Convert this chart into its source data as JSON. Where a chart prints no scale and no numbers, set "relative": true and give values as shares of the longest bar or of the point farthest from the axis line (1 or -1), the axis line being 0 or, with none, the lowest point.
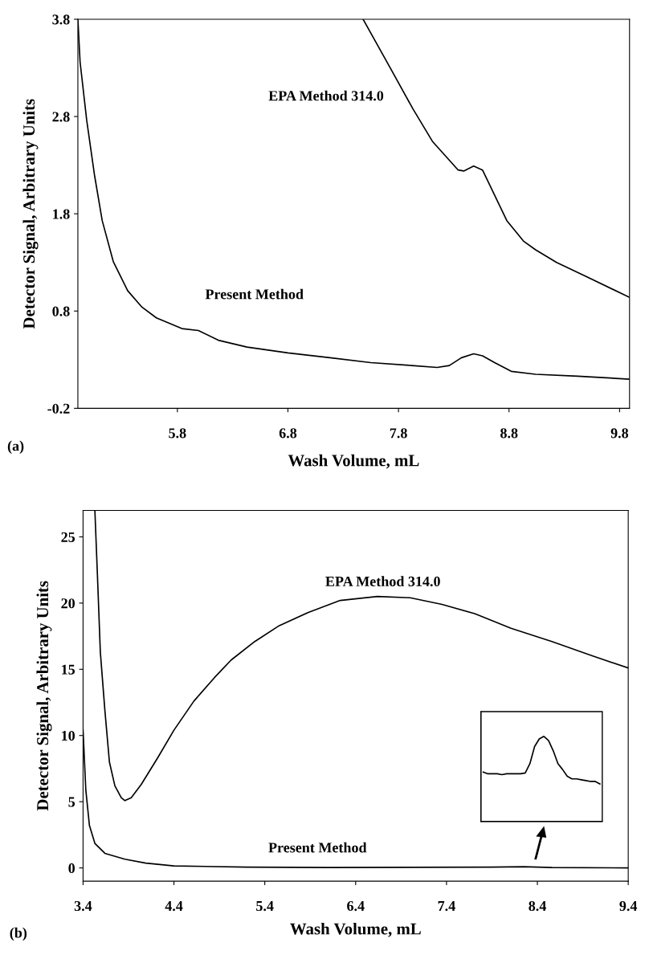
{
  "chart_data": [
    {
      "type": "line",
      "xlabel": "Wash Volume, mL",
      "ylabel": "Detector Signal, Arbitrary Units",
      "annotations": [
        "(a)"
      ],
      "xlim": [
        4.9,
        9.89
      ],
      "ylim": [
        -0.2,
        3.8
      ],
      "xticks": [
        5.8,
        6.8,
        7.8,
        8.8,
        9.8
      ],
      "yticks": [
        -0.2,
        0.8,
        1.8,
        2.8,
        3.8
      ],
      "grid": false,
      "legend": false,
      "marker": "none",
      "line_style": "solid",
      "series": [
        {
          "name": "EPA Method 314.0",
          "color": "#000000",
          "x": [
            7.48,
            7.74,
            7.93,
            8.11,
            8.34,
            8.39,
            8.48,
            8.56,
            8.67,
            8.78,
            8.93,
            9.04,
            9.23,
            9.49,
            9.89
          ],
          "values": [
            3.8,
            3.27,
            2.88,
            2.54,
            2.25,
            2.24,
            2.29,
            2.25,
            1.99,
            1.73,
            1.52,
            1.43,
            1.3,
            1.16,
            0.94
          ]
        },
        {
          "name": "Present Method",
          "color": "#000000",
          "x": [
            4.9,
            4.92,
            4.98,
            5.05,
            5.12,
            5.22,
            5.35,
            5.48,
            5.61,
            5.84,
            5.99,
            6.17,
            6.43,
            6.8,
            7.18,
            7.55,
            7.92,
            8.15,
            8.26,
            8.37,
            8.48,
            8.56,
            8.67,
            8.82,
            9.04,
            9.42,
            9.89
          ],
          "values": [
            3.8,
            3.36,
            2.76,
            2.2,
            1.73,
            1.31,
            1.01,
            0.84,
            0.73,
            0.62,
            0.6,
            0.5,
            0.43,
            0.37,
            0.32,
            0.27,
            0.24,
            0.22,
            0.24,
            0.32,
            0.36,
            0.34,
            0.27,
            0.18,
            0.15,
            0.13,
            0.1
          ]
        }
      ]
    },
    {
      "type": "line",
      "xlabel": "Wash Volume, mL",
      "ylabel": "Detector Signal, Arbitrary Units",
      "annotations": [
        "(b)"
      ],
      "xlim": [
        3.4,
        9.4
      ],
      "ylim": [
        -1,
        27
      ],
      "xticks": [
        3.4,
        4.4,
        5.4,
        6.4,
        7.4,
        8.4,
        9.4
      ],
      "yticks": [
        0,
        5,
        10,
        15,
        20,
        25
      ],
      "grid": false,
      "legend": false,
      "marker": "none",
      "line_style": "solid",
      "series": [
        {
          "name": "EPA Method 314.0",
          "color": "#000000",
          "x": [
            3.53,
            3.557,
            3.59,
            3.64,
            3.69,
            3.75,
            3.82,
            3.86,
            3.93,
            4.04,
            4.22,
            4.4,
            4.62,
            4.85,
            5.03,
            5.29,
            5.56,
            5.88,
            6.23,
            6.64,
            7.0,
            7.35,
            7.71,
            8.11,
            8.56,
            9.01,
            9.4
          ],
          "values": [
            27,
            22.3,
            16.3,
            11.9,
            8.0,
            6.2,
            5.3,
            5.08,
            5.3,
            6.3,
            8.3,
            10.4,
            12.6,
            14.4,
            15.7,
            17.1,
            18.3,
            19.3,
            20.2,
            20.5,
            20.4,
            19.9,
            19.2,
            18.1,
            17.1,
            16.0,
            15.1
          ]
        },
        {
          "name": "Present Method",
          "color": "#000000",
          "x": [
            3.4,
            3.43,
            3.47,
            3.53,
            3.64,
            3.86,
            4.09,
            4.4,
            5.2,
            6.1,
            7.89,
            8.25,
            8.56,
            9.4
          ],
          "values": [
            10.4,
            5.9,
            3.2,
            1.85,
            1.1,
            0.66,
            0.36,
            0.15,
            0.06,
            0.03,
            0.06,
            0.09,
            0.03,
            0
          ]
        }
      ]
    },
    {
      "type": "line",
      "relative": true,
      "tick_labels": false,
      "grid": false,
      "legend": false,
      "marker": "none",
      "line_style": "solid",
      "categories": [
        null,
        null,
        null,
        null,
        null,
        null,
        null,
        null,
        null,
        null,
        null,
        null,
        null,
        null,
        null,
        null,
        null,
        null,
        null,
        null,
        null,
        null,
        null,
        null,
        null,
        null
      ],
      "series": [
        {
          "color": "#000000",
          "values": [
            0.58,
            0.56,
            0.56,
            0.56,
            0.55,
            0.56,
            0.56,
            0.56,
            0.56,
            0.57,
            0.68,
            0.88,
            0.97,
            1.0,
            0.95,
            0.83,
            0.68,
            0.61,
            0.53,
            0.5,
            0.5,
            0.49,
            0.48,
            0.47,
            0.47,
            0.44
          ]
        }
      ]
    }
  ]
}
